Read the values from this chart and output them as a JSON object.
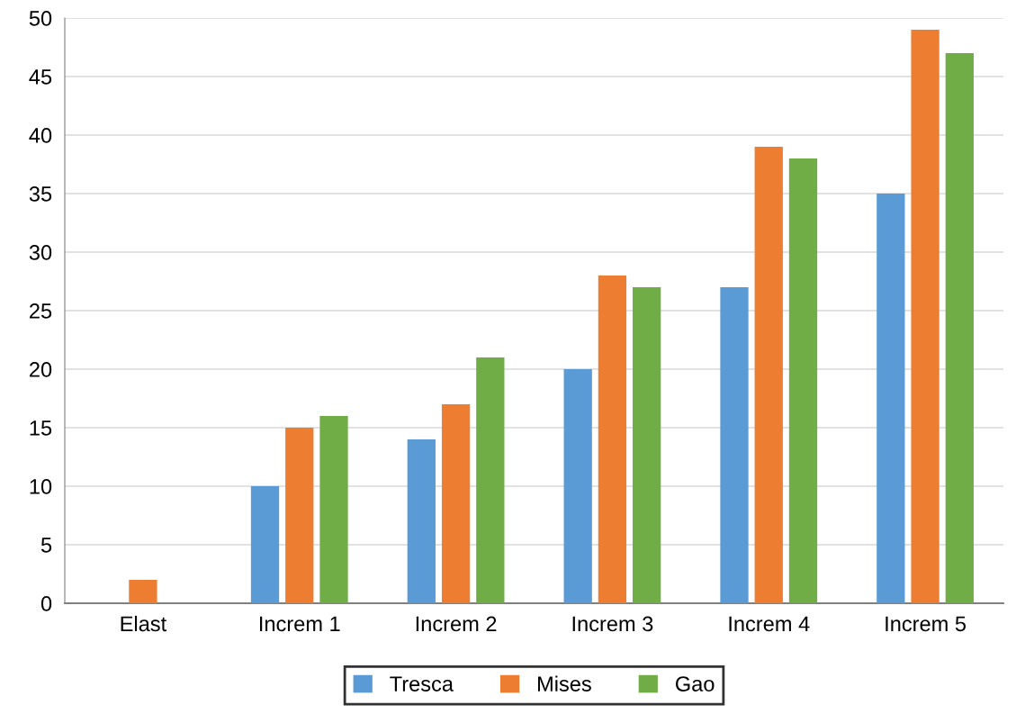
{
  "chart_data": {
    "type": "bar",
    "categories": [
      "Elast",
      "Increm 1",
      "Increm 2",
      "Increm 3",
      "Increm 4",
      "Increm 5"
    ],
    "series": [
      {
        "name": "Tresca",
        "color": "#5b9bd5",
        "values": [
          0,
          10,
          14,
          20,
          27,
          35
        ]
      },
      {
        "name": "Mises",
        "color": "#ed7d31",
        "values": [
          2,
          15,
          17,
          28,
          39,
          49
        ]
      },
      {
        "name": "Gao",
        "color": "#70ad47",
        "values": [
          0,
          16,
          21,
          27,
          38,
          47
        ]
      }
    ],
    "ylim": [
      0,
      50
    ],
    "yticks": [
      0,
      5,
      10,
      15,
      20,
      25,
      30,
      35,
      40,
      45,
      50
    ],
    "grid": "y",
    "legend": "bottom"
  }
}
